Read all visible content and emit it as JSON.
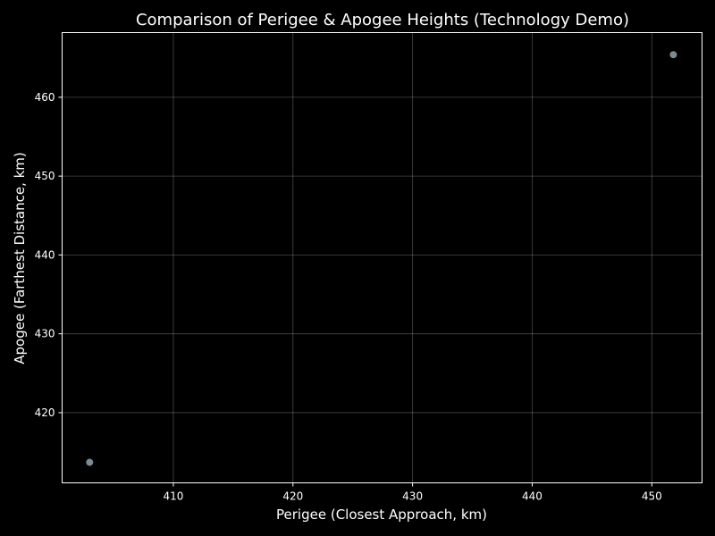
{
  "chart_data": {
    "type": "scatter",
    "title": "Comparison of Perigee & Apogee Heights (Technology Demo)",
    "xlabel": "Perigee (Closest Approach, km)",
    "ylabel": "Apogee (Farthest Distance, km)",
    "xlim": [
      400.7,
      454.2
    ],
    "ylim": [
      411.1,
      468.2
    ],
    "xticks": [
      410,
      420,
      430,
      440,
      450
    ],
    "yticks": [
      420,
      430,
      440,
      450,
      460
    ],
    "grid": true,
    "points": [
      {
        "x": 403.0,
        "y": 413.7
      },
      {
        "x": 451.8,
        "y": 465.4
      }
    ],
    "marker_color": "#8fa3ad",
    "background_color": "#000000",
    "text_color": "#ffffff"
  }
}
